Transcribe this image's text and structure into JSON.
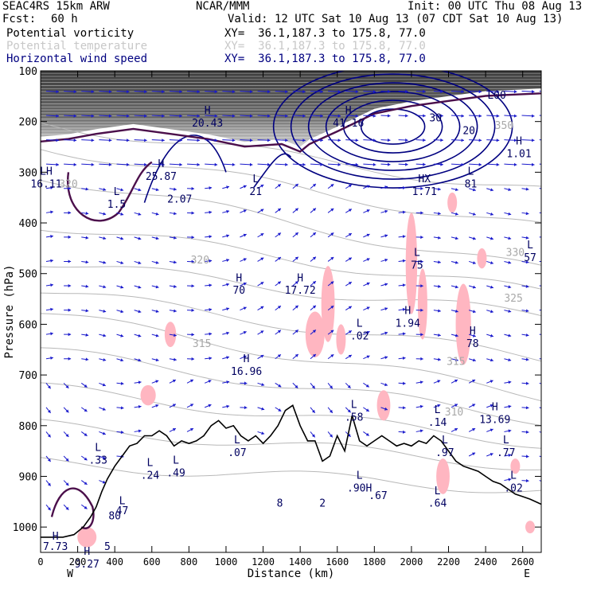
{
  "header": {
    "model": "SEAC4RS 15km ARW",
    "org": "NCAR/MMM",
    "init": "Init: 00 UTC Thu 08 Aug 13",
    "fcst_label": "Fcst:",
    "fcst_value": "60 h",
    "valid": "Valid: 12 UTC Sat 10 Aug 13 (07 CDT Sat 10 Aug 13)",
    "fields": [
      {
        "name": "Potential vorticity",
        "xy": "XY=  36.1,187.3 to 175.8, 77.0",
        "color": "#000000"
      },
      {
        "name": "Potential temperature",
        "xy": "XY=  36.1,187.3 to 175.8, 77.0",
        "color": "#c8c8c8"
      },
      {
        "name": "Horizontal wind speed",
        "xy": "XY=  36.1,187.3 to 175.8, 77.0",
        "color": "#000080"
      }
    ]
  },
  "chart_data": {
    "type": "cross-section",
    "xlabel": "Distance (km)",
    "ylabel": "Pressure (hPa)",
    "xlim": [
      0,
      2700
    ],
    "ylim": [
      1050,
      100
    ],
    "x_ticks": [
      0,
      200,
      400,
      600,
      800,
      1000,
      1200,
      1400,
      1600,
      1800,
      2000,
      2200,
      2400,
      2600
    ],
    "y_ticks": [
      100,
      200,
      300,
      400,
      500,
      600,
      700,
      800,
      900,
      1000
    ],
    "x_end_labels": {
      "left": "W",
      "right": "E"
    },
    "terrain_pressure": [
      [
        0,
        1020
      ],
      [
        120,
        1020
      ],
      [
        180,
        1015
      ],
      [
        230,
        1000
      ],
      [
        270,
        980
      ],
      [
        300,
        960
      ],
      [
        330,
        930
      ],
      [
        360,
        905
      ],
      [
        400,
        880
      ],
      [
        440,
        860
      ],
      [
        480,
        840
      ],
      [
        520,
        835
      ],
      [
        560,
        820
      ],
      [
        600,
        820
      ],
      [
        640,
        810
      ],
      [
        680,
        820
      ],
      [
        720,
        840
      ],
      [
        760,
        830
      ],
      [
        800,
        835
      ],
      [
        840,
        830
      ],
      [
        880,
        820
      ],
      [
        920,
        800
      ],
      [
        960,
        790
      ],
      [
        1000,
        805
      ],
      [
        1040,
        800
      ],
      [
        1080,
        820
      ],
      [
        1120,
        830
      ],
      [
        1160,
        820
      ],
      [
        1200,
        835
      ],
      [
        1240,
        820
      ],
      [
        1280,
        800
      ],
      [
        1320,
        770
      ],
      [
        1360,
        760
      ],
      [
        1400,
        800
      ],
      [
        1440,
        830
      ],
      [
        1480,
        830
      ],
      [
        1520,
        870
      ],
      [
        1560,
        860
      ],
      [
        1600,
        820
      ],
      [
        1640,
        850
      ],
      [
        1680,
        780
      ],
      [
        1720,
        830
      ],
      [
        1760,
        840
      ],
      [
        1800,
        830
      ],
      [
        1840,
        820
      ],
      [
        1880,
        830
      ],
      [
        1920,
        840
      ],
      [
        1960,
        835
      ],
      [
        2000,
        840
      ],
      [
        2040,
        830
      ],
      [
        2080,
        835
      ],
      [
        2120,
        820
      ],
      [
        2160,
        830
      ],
      [
        2200,
        850
      ],
      [
        2240,
        870
      ],
      [
        2280,
        880
      ],
      [
        2320,
        885
      ],
      [
        2360,
        890
      ],
      [
        2400,
        900
      ],
      [
        2440,
        910
      ],
      [
        2480,
        915
      ],
      [
        2520,
        925
      ],
      [
        2560,
        935
      ],
      [
        2600,
        940
      ],
      [
        2640,
        945
      ],
      [
        2700,
        955
      ]
    ],
    "theta_labels": [
      {
        "text": "350",
        "x": 2500,
        "p": 215
      },
      {
        "text": "330",
        "x": 2560,
        "p": 465
      },
      {
        "text": "325",
        "x": 2550,
        "p": 555
      },
      {
        "text": "320",
        "x": 860,
        "p": 480
      },
      {
        "text": "315",
        "x": 870,
        "p": 645
      },
      {
        "text": "315",
        "x": 2240,
        "p": 680
      },
      {
        "text": "310",
        "x": 2230,
        "p": 780
      },
      {
        "text": "320",
        "x": 150,
        "p": 330
      }
    ],
    "wind_labels": [
      {
        "text": "H",
        "x": 900,
        "p": 185
      },
      {
        "text": "20.43",
        "x": 900,
        "p": 210
      },
      {
        "text": "H",
        "x": 1660,
        "p": 185
      },
      {
        "text": "41.16",
        "x": 1660,
        "p": 210
      },
      {
        "text": "30",
        "x": 2130,
        "p": 200
      },
      {
        "text": "20",
        "x": 2310,
        "p": 225
      },
      {
        "text": "H",
        "x": 2580,
        "p": 245
      },
      {
        "text": "1.01",
        "x": 2580,
        "p": 270
      },
      {
        "text": "L00",
        "x": 2460,
        "p": 155
      },
      {
        "text": "LH",
        "x": 30,
        "p": 305
      },
      {
        "text": "16.11",
        "x": 30,
        "p": 330
      },
      {
        "text": "H",
        "x": 650,
        "p": 290
      },
      {
        "text": "25.87",
        "x": 650,
        "p": 315
      },
      {
        "text": "2.07",
        "x": 750,
        "p": 360
      },
      {
        "text": "L",
        "x": 410,
        "p": 345
      },
      {
        "text": "1.5",
        "x": 410,
        "p": 370
      },
      {
        "text": "L",
        "x": 1160,
        "p": 320
      },
      {
        "text": "21",
        "x": 1160,
        "p": 345
      },
      {
        "text": "HX",
        "x": 2070,
        "p": 320
      },
      {
        "text": "1.71",
        "x": 2070,
        "p": 345
      },
      {
        "text": "L",
        "x": 2320,
        "p": 305
      },
      {
        "text": "81",
        "x": 2320,
        "p": 330
      },
      {
        "text": "L",
        "x": 2640,
        "p": 450
      },
      {
        "text": "57",
        "x": 2640,
        "p": 475
      },
      {
        "text": "L",
        "x": 2030,
        "p": 465
      },
      {
        "text": "75",
        "x": 2030,
        "p": 490
      },
      {
        "text": "H",
        "x": 1070,
        "p": 515
      },
      {
        "text": "70",
        "x": 1070,
        "p": 540
      },
      {
        "text": "H",
        "x": 1400,
        "p": 515
      },
      {
        "text": "17.72",
        "x": 1400,
        "p": 540
      },
      {
        "text": "H",
        "x": 1980,
        "p": 580
      },
      {
        "text": "1.94",
        "x": 1980,
        "p": 605
      },
      {
        "text": "L",
        "x": 1720,
        "p": 605
      },
      {
        "text": ".02",
        "x": 1720,
        "p": 630
      },
      {
        "text": "H",
        "x": 2330,
        "p": 620
      },
      {
        "text": "78",
        "x": 2330,
        "p": 645
      },
      {
        "text": "H",
        "x": 1110,
        "p": 675
      },
      {
        "text": "16.96",
        "x": 1110,
        "p": 700
      },
      {
        "text": "L",
        "x": 1690,
        "p": 765
      },
      {
        "text": ".58",
        "x": 1690,
        "p": 790
      },
      {
        "text": "L",
        "x": 2140,
        "p": 775
      },
      {
        "text": ".14",
        "x": 2140,
        "p": 800
      },
      {
        "text": "H",
        "x": 2450,
        "p": 770
      },
      {
        "text": "13.69",
        "x": 2450,
        "p": 795
      },
      {
        "text": "L",
        "x": 2180,
        "p": 835
      },
      {
        "text": ".97",
        "x": 2180,
        "p": 860
      },
      {
        "text": "L",
        "x": 1060,
        "p": 835
      },
      {
        "text": ".07",
        "x": 1060,
        "p": 860
      },
      {
        "text": "L",
        "x": 2510,
        "p": 835
      },
      {
        "text": ".77",
        "x": 2510,
        "p": 860
      },
      {
        "text": "L",
        "x": 310,
        "p": 850
      },
      {
        "text": ".33",
        "x": 310,
        "p": 875
      },
      {
        "text": "L",
        "x": 730,
        "p": 875
      },
      {
        "text": ".49",
        "x": 730,
        "p": 900
      },
      {
        "text": "L",
        "x": 590,
        "p": 880
      },
      {
        "text": ".24",
        "x": 590,
        "p": 905
      },
      {
        "text": "L",
        "x": 2550,
        "p": 905
      },
      {
        "text": ".02",
        "x": 2550,
        "p": 930
      },
      {
        "text": "L",
        "x": 1720,
        "p": 905
      },
      {
        "text": ".90H",
        "x": 1720,
        "p": 930
      },
      {
        "text": ".67",
        "x": 1820,
        "p": 945
      },
      {
        "text": "L",
        "x": 2140,
        "p": 935
      },
      {
        "text": ".64",
        "x": 2140,
        "p": 960
      },
      {
        "text": "8",
        "x": 1290,
        "p": 960
      },
      {
        "text": "2",
        "x": 1520,
        "p": 960
      },
      {
        "text": "L",
        "x": 440,
        "p": 955
      },
      {
        "text": "47",
        "x": 440,
        "p": 975
      },
      {
        "text": "80",
        "x": 400,
        "p": 985
      },
      {
        "text": "H",
        "x": 80,
        "p": 1025
      },
      {
        "text": "7.73",
        "x": 80,
        "p": 1045
      },
      {
        "text": "H",
        "x": 250,
        "p": 1055
      },
      {
        "text": "9.27",
        "x": 250,
        "p": 1080
      },
      {
        "text": "5",
        "x": 360,
        "p": 1045
      }
    ]
  }
}
